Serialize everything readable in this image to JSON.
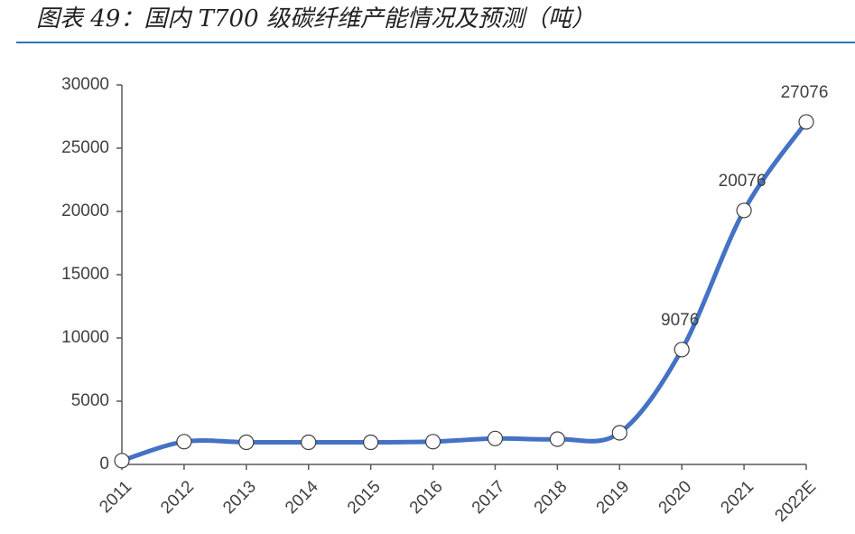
{
  "chart_data": {
    "type": "line",
    "title": "图表 49：国内 T700 级碳纤维产能情况及预测（吨）",
    "categories": [
      "2011",
      "2012",
      "2013",
      "2014",
      "2015",
      "2016",
      "2017",
      "2018",
      "2019",
      "2020",
      "2021",
      "2022E"
    ],
    "series": [
      {
        "name": "T700 级碳纤维产能",
        "color": "#4472c4",
        "values": [
          300,
          1800,
          1750,
          1750,
          1750,
          1800,
          2050,
          2000,
          2500,
          9076,
          20076,
          27076
        ],
        "value_labels": [
          null,
          null,
          null,
          null,
          null,
          null,
          null,
          null,
          null,
          "9076",
          "20076",
          "27076"
        ]
      }
    ],
    "ylim": [
      0,
      30000
    ],
    "yticks": [
      0,
      5000,
      10000,
      15000,
      20000,
      25000,
      30000
    ],
    "grid": false
  }
}
